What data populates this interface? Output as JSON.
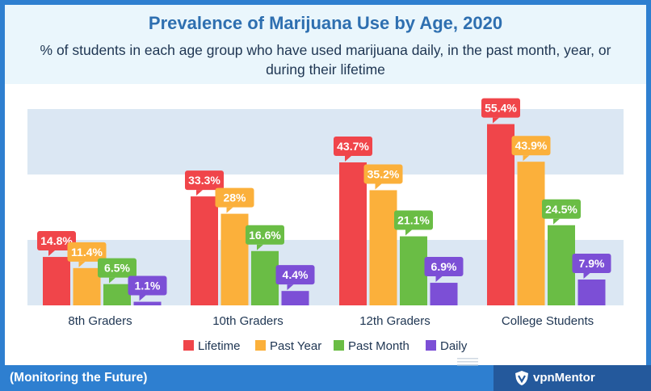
{
  "chart_data": {
    "type": "bar",
    "title": "Prevalence of Marijuana Use by Age, 2020",
    "subtitle": "% of students in each age group who have used marijuana daily, in the past month, year, or during their lifetime",
    "categories": [
      "8th Graders",
      "10th Graders",
      "12th Graders",
      "College Students"
    ],
    "series": [
      {
        "name": "Lifetime",
        "color": "#f0454a",
        "values": [
          14.8,
          33.3,
          43.7,
          55.4
        ],
        "labels": [
          "14.8%",
          "33.3%",
          "43.7%",
          "55.4%"
        ]
      },
      {
        "name": "Past Year",
        "color": "#fbb03b",
        "values": [
          11.4,
          28,
          35.2,
          43.9
        ],
        "labels": [
          "11.4%",
          "28%",
          "35.2%",
          "43.9%"
        ]
      },
      {
        "name": "Past Month",
        "color": "#6abd45",
        "values": [
          6.5,
          16.6,
          21.1,
          24.5
        ],
        "labels": [
          "6.5%",
          "16.6%",
          "21.1%",
          "24.5%"
        ]
      },
      {
        "name": "Daily",
        "color": "#7c4fd6",
        "values": [
          1.1,
          4.4,
          6.9,
          7.9
        ],
        "labels": [
          "1.1%",
          "4.4%",
          "6.9%",
          "7.9%"
        ]
      }
    ],
    "ylim": [
      0,
      60
    ],
    "grid": "banded",
    "legend": "bottom"
  },
  "footer": {
    "source": "(Monitoring the Future)",
    "brand": "vpnMentor"
  }
}
